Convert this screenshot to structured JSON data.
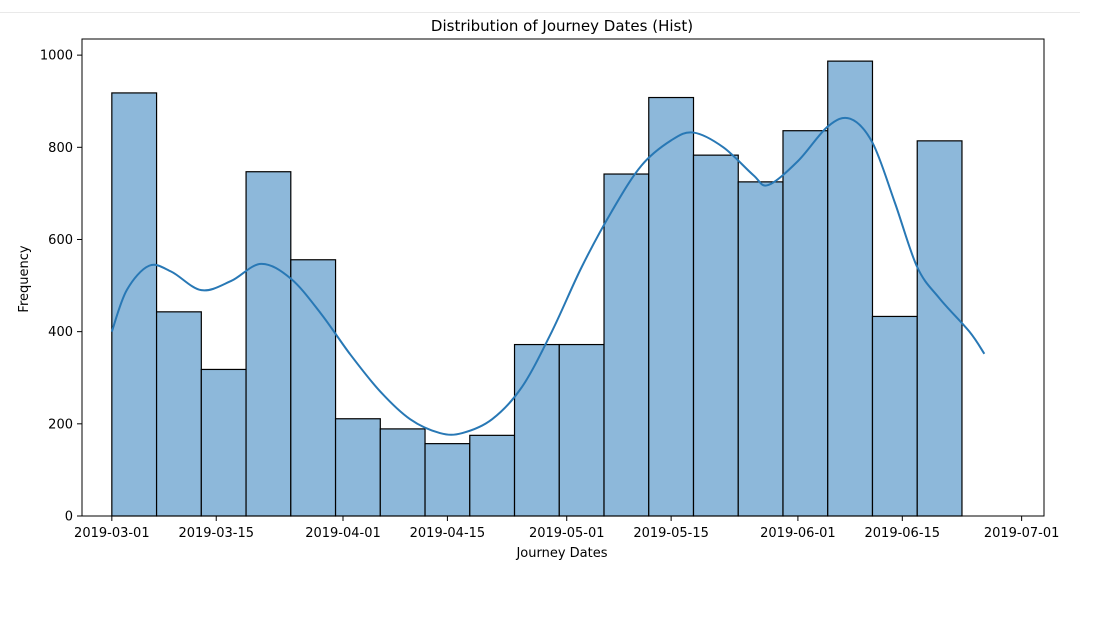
{
  "chart_data": {
    "type": "bar",
    "title": "Distribution of Journey Dates (Hist)",
    "xlabel": "Journey Dates",
    "ylabel": "Frequency",
    "xlim": [
      "2019-02-25",
      "2019-07-04"
    ],
    "ylim": [
      0,
      1035
    ],
    "x_ticks": [
      "2019-03-01",
      "2019-03-15",
      "2019-04-01",
      "2019-04-15",
      "2019-05-01",
      "2019-05-15",
      "2019-06-01",
      "2019-06-15",
      "2019-07-01"
    ],
    "y_ticks": [
      0,
      200,
      400,
      600,
      800,
      1000
    ],
    "bins": [
      {
        "start": "2019-03-01",
        "end": "2019-03-07",
        "value": 918
      },
      {
        "start": "2019-03-07",
        "end": "2019-03-13",
        "value": 443
      },
      {
        "start": "2019-03-13",
        "end": "2019-03-19",
        "value": 318
      },
      {
        "start": "2019-03-19",
        "end": "2019-03-25",
        "value": 747
      },
      {
        "start": "2019-03-25",
        "end": "2019-03-31",
        "value": 556
      },
      {
        "start": "2019-03-31",
        "end": "2019-04-06",
        "value": 211
      },
      {
        "start": "2019-04-06",
        "end": "2019-04-12",
        "value": 189
      },
      {
        "start": "2019-04-12",
        "end": "2019-04-18",
        "value": 157
      },
      {
        "start": "2019-04-18",
        "end": "2019-04-24",
        "value": 175
      },
      {
        "start": "2019-04-24",
        "end": "2019-04-30",
        "value": 372
      },
      {
        "start": "2019-04-30",
        "end": "2019-05-06",
        "value": 372
      },
      {
        "start": "2019-05-06",
        "end": "2019-05-12",
        "value": 742
      },
      {
        "start": "2019-05-12",
        "end": "2019-05-18",
        "value": 908
      },
      {
        "start": "2019-05-18",
        "end": "2019-05-24",
        "value": 783
      },
      {
        "start": "2019-05-24",
        "end": "2019-05-30",
        "value": 725
      },
      {
        "start": "2019-05-30",
        "end": "2019-06-05",
        "value": 836
      },
      {
        "start": "2019-06-05",
        "end": "2019-06-11",
        "value": 987
      },
      {
        "start": "2019-06-11",
        "end": "2019-06-17",
        "value": 433
      },
      {
        "start": "2019-06-17",
        "end": "2019-06-23",
        "value": 814
      }
    ],
    "kde": [
      {
        "x": "2019-03-01",
        "y": 400
      },
      {
        "x": "2019-03-03",
        "y": 490
      },
      {
        "x": "2019-03-06",
        "y": 543
      },
      {
        "x": "2019-03-09",
        "y": 530
      },
      {
        "x": "2019-03-13",
        "y": 490
      },
      {
        "x": "2019-03-17",
        "y": 510
      },
      {
        "x": "2019-03-21",
        "y": 547
      },
      {
        "x": "2019-03-25",
        "y": 515
      },
      {
        "x": "2019-03-29",
        "y": 440
      },
      {
        "x": "2019-04-02",
        "y": 350
      },
      {
        "x": "2019-04-06",
        "y": 270
      },
      {
        "x": "2019-04-10",
        "y": 210
      },
      {
        "x": "2019-04-14",
        "y": 180
      },
      {
        "x": "2019-04-17",
        "y": 180
      },
      {
        "x": "2019-04-21",
        "y": 210
      },
      {
        "x": "2019-04-25",
        "y": 280
      },
      {
        "x": "2019-04-29",
        "y": 400
      },
      {
        "x": "2019-05-03",
        "y": 540
      },
      {
        "x": "2019-05-07",
        "y": 660
      },
      {
        "x": "2019-05-11",
        "y": 760
      },
      {
        "x": "2019-05-15",
        "y": 815
      },
      {
        "x": "2019-05-18",
        "y": 832
      },
      {
        "x": "2019-05-22",
        "y": 800
      },
      {
        "x": "2019-05-26",
        "y": 740
      },
      {
        "x": "2019-05-28",
        "y": 718
      },
      {
        "x": "2019-06-01",
        "y": 770
      },
      {
        "x": "2019-06-05",
        "y": 845
      },
      {
        "x": "2019-06-08",
        "y": 862
      },
      {
        "x": "2019-06-11",
        "y": 810
      },
      {
        "x": "2019-06-14",
        "y": 680
      },
      {
        "x": "2019-06-17",
        "y": 540
      },
      {
        "x": "2019-06-20",
        "y": 472
      },
      {
        "x": "2019-06-24",
        "y": 400
      },
      {
        "x": "2019-06-26",
        "y": 352
      }
    ],
    "bar_color": "#8db8da",
    "bar_edge_color": "#000000",
    "kde_color": "#2878b5",
    "grid": false,
    "legend": "none"
  }
}
